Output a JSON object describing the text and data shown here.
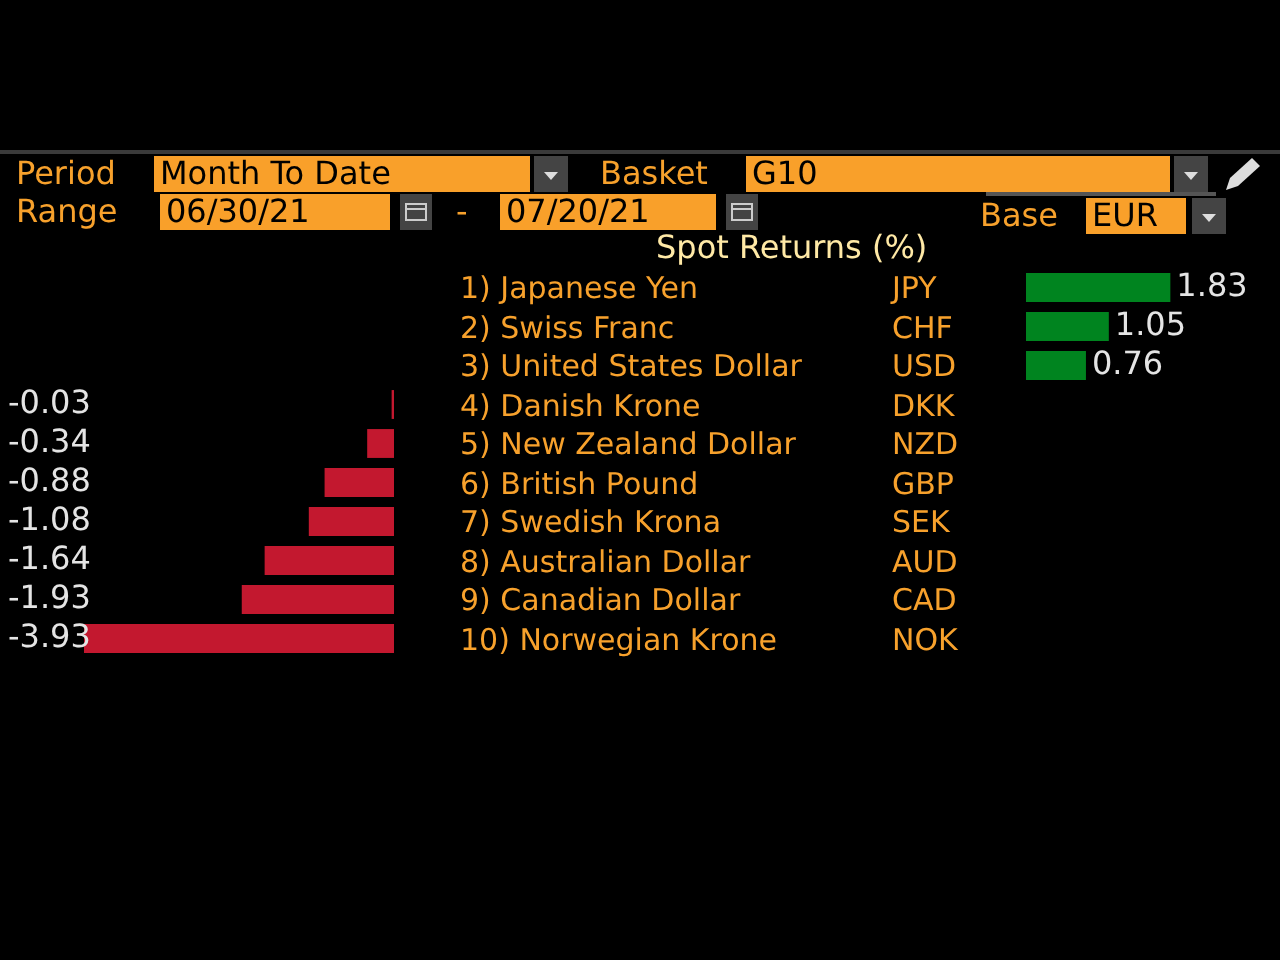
{
  "chart_data": [
    {
      "type": "bar",
      "orientation": "horizontal",
      "title": "Spot Returns (%)",
      "categories": [
        "1) Japanese Yen",
        "2) Swiss Franc",
        "3) United States Dollar",
        "4) Danish Krone",
        "5) New Zealand Dollar",
        "6) British Pound",
        "7) Swedish Krona",
        "8) Australian Dollar",
        "9) Canadian Dollar",
        "10) Norwegian Krone"
      ],
      "values": [
        null,
        null,
        null,
        -0.03,
        -0.34,
        -0.88,
        -1.08,
        -1.64,
        -1.93,
        -3.93
      ],
      "colors": [
        "#c3182f",
        "#c3182f",
        "#c3182f",
        "#c3182f",
        "#c3182f",
        "#c3182f",
        "#c3182f",
        "#c3182f",
        "#c3182f",
        "#c3182f"
      ],
      "data_labels": true,
      "annotations": [
        "Period",
        "Month To Date",
        "Basket",
        "G10",
        "Range",
        "06/30/21",
        "-",
        "07/20/21",
        "Base",
        "EUR",
        "JPY",
        "CHF",
        "USD",
        "DKK",
        "NZD",
        "GBP",
        "SEK",
        "AUD",
        "CAD",
        "NOK"
      ]
    },
    {
      "type": "bar",
      "orientation": "horizontal",
      "categories": [
        null,
        null,
        null,
        null,
        null,
        null,
        null,
        null,
        null,
        null
      ],
      "values": [
        1.83,
        1.05,
        0.76,
        null,
        null,
        null,
        null,
        null,
        null,
        null
      ],
      "colors": [
        "#00841f",
        "#00841f",
        "#00841f",
        "#00841f",
        "#00841f",
        "#00841f",
        "#00841f",
        "#00841f",
        "#00841f",
        "#00841f"
      ],
      "data_labels": true
    }
  ]
}
